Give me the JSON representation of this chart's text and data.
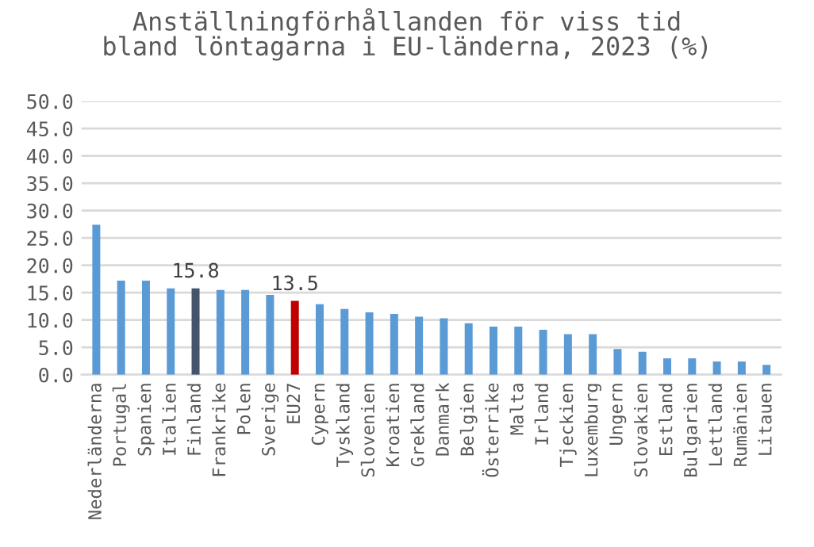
{
  "chart_data": {
    "type": "bar",
    "title": "Anställningförhållanden för viss tid\nbland löntagarna i EU-länderna, 2023 (%)",
    "categories": [
      "Nederländerna",
      "Portugal",
      "Spanien",
      "Italien",
      "Finland",
      "Frankrike",
      "Polen",
      "Sverige",
      "EU27",
      "Cypern",
      "Tyskland",
      "Slovenien",
      "Kroatien",
      "Grekland",
      "Danmark",
      "Belgien",
      "Österrike",
      "Malta",
      "Irland",
      "Tjeckien",
      "Luxemburg",
      "Ungern",
      "Slovakien",
      "Estland",
      "Bulgarien",
      "Lettland",
      "Rumänien",
      "Litauen"
    ],
    "values": [
      27.4,
      17.2,
      17.2,
      15.8,
      15.8,
      15.5,
      15.5,
      14.6,
      13.5,
      12.9,
      12.0,
      11.4,
      11.1,
      10.6,
      10.3,
      9.4,
      8.8,
      8.8,
      8.2,
      7.4,
      7.4,
      4.7,
      4.2,
      3.0,
      3.0,
      2.4,
      2.4,
      1.8
    ],
    "colors": [
      "#5b9bd5",
      "#5b9bd5",
      "#5b9bd5",
      "#5b9bd5",
      "#44546a",
      "#5b9bd5",
      "#5b9bd5",
      "#5b9bd5",
      "#c00000",
      "#5b9bd5",
      "#5b9bd5",
      "#5b9bd5",
      "#5b9bd5",
      "#5b9bd5",
      "#5b9bd5",
      "#5b9bd5",
      "#5b9bd5",
      "#5b9bd5",
      "#5b9bd5",
      "#5b9bd5",
      "#5b9bd5",
      "#5b9bd5",
      "#5b9bd5",
      "#5b9bd5",
      "#5b9bd5",
      "#5b9bd5",
      "#5b9bd5",
      "#5b9bd5"
    ],
    "value_labels": [
      null,
      null,
      null,
      null,
      "15.8",
      null,
      null,
      null,
      "13.5",
      null,
      null,
      null,
      null,
      null,
      null,
      null,
      null,
      null,
      null,
      null,
      null,
      null,
      null,
      null,
      null,
      null,
      null,
      null
    ],
    "ylim": [
      0,
      50
    ],
    "yticks": [
      {
        "value": 0,
        "label": "0.0"
      },
      {
        "value": 5,
        "label": "5.0"
      },
      {
        "value": 10,
        "label": "10.0"
      },
      {
        "value": 15,
        "label": "15.0"
      },
      {
        "value": 20,
        "label": "20.0"
      },
      {
        "value": 25,
        "label": "25.0"
      },
      {
        "value": 30,
        "label": "30.0"
      },
      {
        "value": 35,
        "label": "35.0"
      },
      {
        "value": 40,
        "label": "40.0"
      },
      {
        "value": 45,
        "label": "45.0"
      },
      {
        "value": 50,
        "label": "50.0"
      }
    ],
    "grid": "y"
  }
}
